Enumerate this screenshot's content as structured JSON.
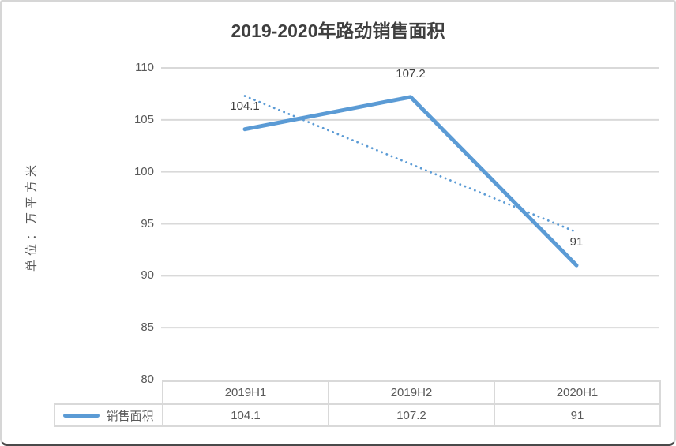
{
  "title": "2019-2020年路劲销售面积",
  "y_axis_title": "单位：万平方米",
  "colors": {
    "line": "#5b9bd5",
    "grid": "#d9d9d9",
    "tick_text": "#595959",
    "label_text": "#3f3f3f",
    "title_text": "#3f3f3f",
    "table_border": "#d9d9d9"
  },
  "chart_data": {
    "type": "line",
    "title": "2019-2020年路劲销售面积",
    "ylabel": "单位：万平方米",
    "categories": [
      "2019H1",
      "2019H2",
      "2020H1"
    ],
    "series": [
      {
        "name": "销售面积",
        "values": [
          104.1,
          107.2,
          91
        ]
      }
    ],
    "data_labels": [
      "104.1",
      "107.2",
      "91"
    ],
    "trendline": {
      "style": "dotted",
      "start_value": 107.3,
      "end_value": 94.2
    },
    "ylim": [
      80,
      110
    ],
    "yticks": [
      110,
      105,
      100,
      95,
      90,
      85,
      80
    ],
    "grid": true,
    "legend_position": "table-left"
  },
  "table": {
    "legend_label": "销售面积",
    "headers": [
      "2019H1",
      "2019H2",
      "2020H1"
    ],
    "values": [
      "104.1",
      "107.2",
      "91"
    ]
  }
}
